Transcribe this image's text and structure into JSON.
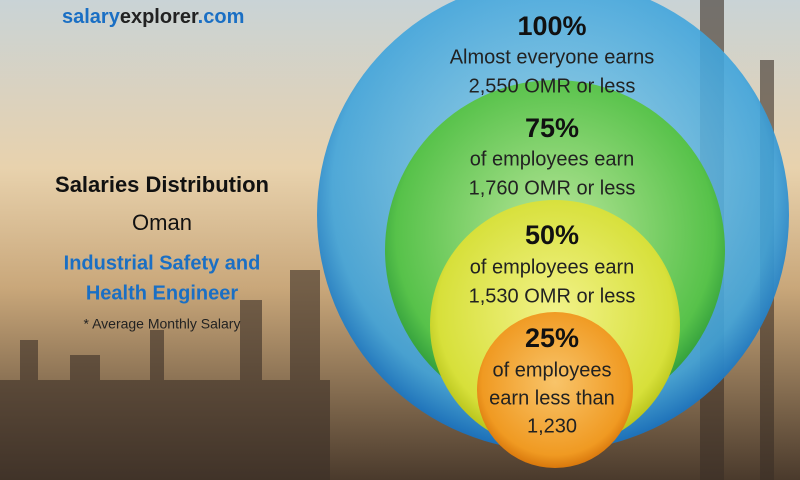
{
  "brand": {
    "part1": "salary",
    "part2": "explorer",
    "part3": ".com"
  },
  "summary": {
    "title": "Salaries Distribution",
    "country": "Oman",
    "job_line1": "Industrial Safety and",
    "job_line2": "Health Engineer",
    "note": "* Average Monthly Salary"
  },
  "circles": [
    {
      "percent": "100%",
      "lines": [
        "Almost everyone earns",
        "2,550 OMR or less"
      ]
    },
    {
      "percent": "75%",
      "lines": [
        "of employees earn",
        "1,760 OMR or less"
      ]
    },
    {
      "percent": "50%",
      "lines": [
        "of employees earn",
        "1,530 OMR or less"
      ]
    },
    {
      "percent": "25%",
      "lines": [
        "of employees",
        "earn less than",
        "1,230"
      ]
    }
  ]
}
